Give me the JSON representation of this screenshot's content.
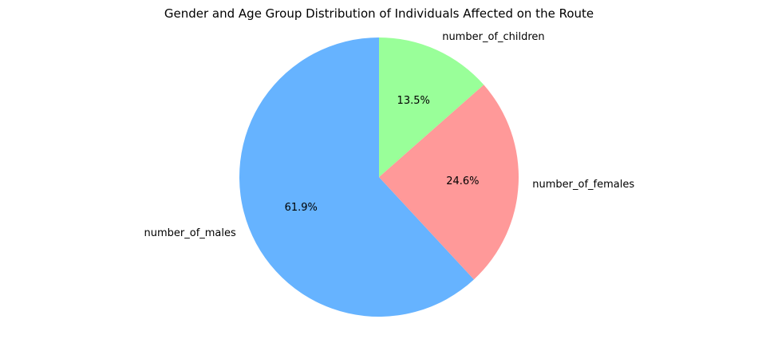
{
  "chart_data": {
    "type": "pie",
    "title": "Gender and Age Group Distribution of Individuals Affected on the Route",
    "slices": [
      {
        "label": "number_of_males",
        "value": 61.9,
        "pct_label": "61.9%",
        "color": "#66b3ff"
      },
      {
        "label": "number_of_females",
        "value": 24.6,
        "pct_label": "24.6%",
        "color": "#ff9999"
      },
      {
        "label": "number_of_children",
        "value": 13.5,
        "pct_label": "13.5%",
        "color": "#99ff99"
      }
    ],
    "start_angle_deg": 90,
    "counterclock": true,
    "legend": "none"
  }
}
